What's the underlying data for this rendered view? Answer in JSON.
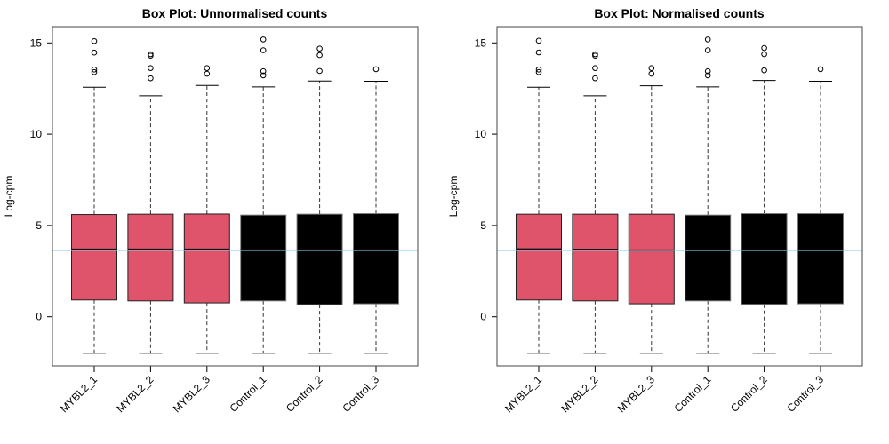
{
  "colors": {
    "treatment": "#DF536B",
    "control": "#000000",
    "reference_line": "#87CEEB",
    "outlier": "#000000"
  },
  "chart_data": [
    {
      "type": "box",
      "title": "Box Plot: Unnormalised counts",
      "xlabel": "",
      "ylabel": "Log-cpm",
      "ylim": [
        -2.69,
        15.89
      ],
      "yticks": [
        0,
        5,
        10,
        15
      ],
      "reference_line": 3.64,
      "grid": false,
      "categories": [
        "MYBL2_1",
        "MYBL2_2",
        "MYBL2_3",
        "Control_1",
        "Control_2",
        "Control_3"
      ],
      "groups": [
        "treatment",
        "treatment",
        "treatment",
        "control",
        "control",
        "control"
      ],
      "boxes": [
        {
          "min": -2,
          "q1": 0.92,
          "median": 3.69,
          "q3": 5.6,
          "max": 12.57,
          "outliers": [
            15.1,
            14.47,
            13.54,
            13.4
          ]
        },
        {
          "min": -2,
          "q1": 0.87,
          "median": 3.69,
          "q3": 5.62,
          "max": 12.1,
          "outliers": [
            14.38,
            14.3,
            13.62,
            13.06
          ]
        },
        {
          "min": -2,
          "q1": 0.76,
          "median": 3.69,
          "q3": 5.63,
          "max": 12.67,
          "outliers": [
            13.62,
            13.31
          ]
        },
        {
          "min": -2,
          "q1": 0.87,
          "median": 3.65,
          "q3": 5.57,
          "max": 12.59,
          "outliers": [
            15.19,
            14.6,
            13.45,
            13.22
          ]
        },
        {
          "min": -2,
          "q1": 0.66,
          "median": 3.65,
          "q3": 5.62,
          "max": 12.91,
          "outliers": [
            14.69,
            14.33,
            13.46
          ]
        },
        {
          "min": -2,
          "q1": 0.71,
          "median": 3.65,
          "q3": 5.65,
          "max": 12.9,
          "outliers": [
            13.56
          ]
        }
      ]
    },
    {
      "type": "box",
      "title": "Box Plot: Normalised counts",
      "xlabel": "",
      "ylabel": "Log-cpm",
      "ylim": [
        -2.69,
        15.89
      ],
      "yticks": [
        0,
        5,
        10,
        15
      ],
      "reference_line": 3.64,
      "grid": false,
      "categories": [
        "MYBL2_1",
        "MYBL2_2",
        "MYBL2_3",
        "Control_1",
        "Control_2",
        "Control_3"
      ],
      "groups": [
        "treatment",
        "treatment",
        "treatment",
        "control",
        "control",
        "control"
      ],
      "boxes": [
        {
          "min": -2,
          "q1": 0.92,
          "median": 3.7,
          "q3": 5.62,
          "max": 12.57,
          "outliers": [
            15.12,
            14.48,
            13.54,
            13.4
          ]
        },
        {
          "min": -2,
          "q1": 0.87,
          "median": 3.68,
          "q3": 5.62,
          "max": 12.1,
          "outliers": [
            14.38,
            14.3,
            13.62,
            13.06
          ]
        },
        {
          "min": -2,
          "q1": 0.71,
          "median": 3.64,
          "q3": 5.62,
          "max": 12.65,
          "outliers": [
            13.62,
            13.31
          ]
        },
        {
          "min": -2,
          "q1": 0.87,
          "median": 3.64,
          "q3": 5.57,
          "max": 12.59,
          "outliers": [
            15.19,
            14.6,
            13.45,
            13.22
          ]
        },
        {
          "min": -2,
          "q1": 0.68,
          "median": 3.64,
          "q3": 5.65,
          "max": 12.94,
          "outliers": [
            14.72,
            14.38,
            13.5
          ]
        },
        {
          "min": -2,
          "q1": 0.71,
          "median": 3.64,
          "q3": 5.65,
          "max": 12.9,
          "outliers": [
            13.56
          ]
        }
      ]
    }
  ]
}
